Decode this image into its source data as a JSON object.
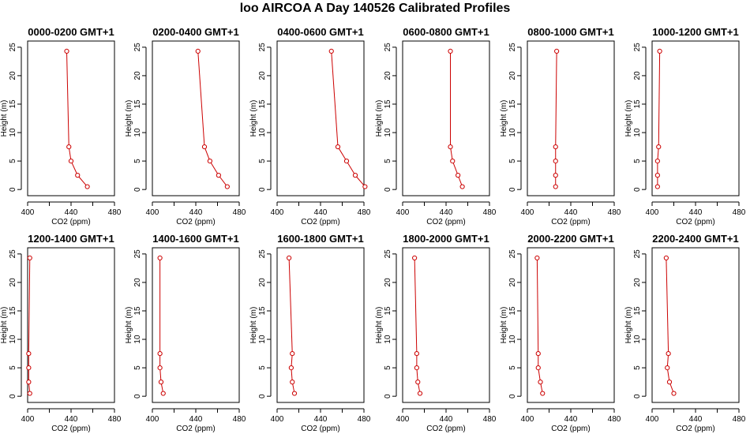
{
  "page": {
    "title": "loo AIRCOA A  Day 140526  Calibrated Profiles"
  },
  "chart_data": [
    {
      "type": "line",
      "title": "0000-0200 GMT+1",
      "xlabel": "CO2 (ppm)",
      "ylabel": "Height (m)",
      "xlim": [
        400,
        480
      ],
      "ylim": [
        0,
        25
      ],
      "xticks": [
        400,
        440,
        480
      ],
      "yticks": [
        0,
        5,
        10,
        15,
        20,
        25
      ],
      "color": "#cc0000",
      "series": [
        {
          "x": [
            455,
            446,
            440,
            438,
            436
          ],
          "y": [
            0.5,
            2.5,
            5,
            7.5,
            24.3
          ]
        }
      ]
    },
    {
      "type": "line",
      "title": "0200-0400 GMT+1",
      "xlabel": "CO2 (ppm)",
      "ylabel": "Height (m)",
      "xlim": [
        400,
        480
      ],
      "ylim": [
        0,
        25
      ],
      "xticks": [
        400,
        440,
        480
      ],
      "yticks": [
        0,
        5,
        10,
        15,
        20,
        25
      ],
      "color": "#cc0000",
      "series": [
        {
          "x": [
            469,
            461,
            453,
            448,
            442
          ],
          "y": [
            0.5,
            2.5,
            5,
            7.5,
            24.3
          ]
        }
      ]
    },
    {
      "type": "line",
      "title": "0400-0600 GMT+1",
      "xlabel": "CO2 (ppm)",
      "ylabel": "Height (m)",
      "xlim": [
        400,
        480
      ],
      "ylim": [
        0,
        25
      ],
      "xticks": [
        400,
        440,
        480
      ],
      "yticks": [
        0,
        5,
        10,
        15,
        20,
        25
      ],
      "color": "#cc0000",
      "series": [
        {
          "x": [
            481,
            472,
            464,
            456,
            450
          ],
          "y": [
            0.5,
            2.5,
            5,
            7.5,
            24.3
          ]
        }
      ]
    },
    {
      "type": "line",
      "title": "0600-0800 GMT+1",
      "xlabel": "CO2 (ppm)",
      "ylabel": "Height (m)",
      "xlim": [
        400,
        480
      ],
      "ylim": [
        0,
        25
      ],
      "xticks": [
        400,
        440,
        480
      ],
      "yticks": [
        0,
        5,
        10,
        15,
        20,
        25
      ],
      "color": "#cc0000",
      "series": [
        {
          "x": [
            455,
            451,
            446,
            444,
            444
          ],
          "y": [
            0.5,
            2.5,
            5,
            7.5,
            24.3
          ]
        }
      ]
    },
    {
      "type": "line",
      "title": "0800-1000 GMT+1",
      "xlabel": "CO2 (ppm)",
      "ylabel": "Height (m)",
      "xlim": [
        400,
        480
      ],
      "ylim": [
        0,
        25
      ],
      "xticks": [
        400,
        440,
        480
      ],
      "yticks": [
        0,
        5,
        10,
        15,
        20,
        25
      ],
      "color": "#cc0000",
      "series": [
        {
          "x": [
            426,
            426,
            426,
            426,
            427
          ],
          "y": [
            0.5,
            2.5,
            5,
            7.5,
            24.3
          ]
        }
      ]
    },
    {
      "type": "line",
      "title": "1000-1200 GMT+1",
      "xlabel": "CO2 (ppm)",
      "ylabel": "Height (m)",
      "xlim": [
        400,
        480
      ],
      "ylim": [
        0,
        25
      ],
      "xticks": [
        400,
        440,
        480
      ],
      "yticks": [
        0,
        5,
        10,
        15,
        20,
        25
      ],
      "color": "#cc0000",
      "series": [
        {
          "x": [
            405,
            405,
            405,
            406,
            407
          ],
          "y": [
            0.5,
            2.5,
            5,
            7.5,
            24.3
          ]
        }
      ]
    },
    {
      "type": "line",
      "title": "1200-1400 GMT+1",
      "xlabel": "CO2 (ppm)",
      "ylabel": "Height (m)",
      "xlim": [
        400,
        480
      ],
      "ylim": [
        0,
        25
      ],
      "xticks": [
        400,
        440,
        480
      ],
      "yticks": [
        0,
        5,
        10,
        15,
        20,
        25
      ],
      "color": "#cc0000",
      "series": [
        {
          "x": [
            402,
            401,
            401,
            401,
            402
          ],
          "y": [
            0.5,
            2.5,
            5,
            7.5,
            24.3
          ]
        }
      ]
    },
    {
      "type": "line",
      "title": "1400-1600 GMT+1",
      "xlabel": "CO2 (ppm)",
      "ylabel": "Height (m)",
      "xlim": [
        400,
        480
      ],
      "ylim": [
        0,
        25
      ],
      "xticks": [
        400,
        440,
        480
      ],
      "yticks": [
        0,
        5,
        10,
        15,
        20,
        25
      ],
      "color": "#cc0000",
      "series": [
        {
          "x": [
            410,
            408,
            407,
            407,
            407
          ],
          "y": [
            0.5,
            2.5,
            5,
            7.5,
            24.3
          ]
        }
      ]
    },
    {
      "type": "line",
      "title": "1600-1800 GMT+1",
      "xlabel": "CO2 (ppm)",
      "ylabel": "Height (m)",
      "xlim": [
        400,
        480
      ],
      "ylim": [
        0,
        25
      ],
      "xticks": [
        400,
        440,
        480
      ],
      "yticks": [
        0,
        5,
        10,
        15,
        20,
        25
      ],
      "color": "#cc0000",
      "series": [
        {
          "x": [
            416,
            414,
            413,
            414,
            411
          ],
          "y": [
            0.5,
            2.5,
            5,
            7.5,
            24.3
          ]
        }
      ]
    },
    {
      "type": "line",
      "title": "1800-2000 GMT+1",
      "xlabel": "CO2 (ppm)",
      "ylabel": "Height (m)",
      "xlim": [
        400,
        480
      ],
      "ylim": [
        0,
        25
      ],
      "xticks": [
        400,
        440,
        480
      ],
      "yticks": [
        0,
        5,
        10,
        15,
        20,
        25
      ],
      "color": "#cc0000",
      "series": [
        {
          "x": [
            416,
            414,
            413,
            413,
            411
          ],
          "y": [
            0.5,
            2.5,
            5,
            7.5,
            24.3
          ]
        }
      ]
    },
    {
      "type": "line",
      "title": "2000-2200 GMT+1",
      "xlabel": "CO2 (ppm)",
      "ylabel": "Height (m)",
      "xlim": [
        400,
        480
      ],
      "ylim": [
        0,
        25
      ],
      "xticks": [
        400,
        440,
        480
      ],
      "yticks": [
        0,
        5,
        10,
        15,
        20,
        25
      ],
      "color": "#cc0000",
      "series": [
        {
          "x": [
            414,
            412,
            410,
            410,
            409
          ],
          "y": [
            0.5,
            2.5,
            5,
            7.5,
            24.3
          ]
        }
      ]
    },
    {
      "type": "line",
      "title": "2200-2400 GMT+1",
      "xlabel": "CO2 (ppm)",
      "ylabel": "Height (m)",
      "xlim": [
        400,
        480
      ],
      "ylim": [
        0,
        25
      ],
      "xticks": [
        400,
        440,
        480
      ],
      "yticks": [
        0,
        5,
        10,
        15,
        20,
        25
      ],
      "color": "#cc0000",
      "series": [
        {
          "x": [
            420,
            416,
            414,
            415,
            413
          ],
          "y": [
            0.5,
            2.5,
            5,
            7.5,
            24.3
          ]
        }
      ]
    }
  ]
}
